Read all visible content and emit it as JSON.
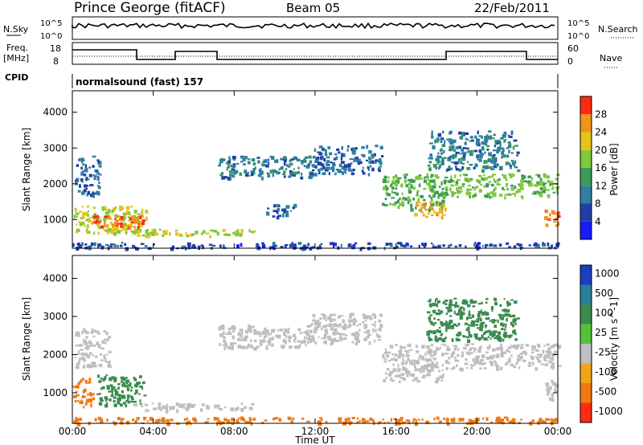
{
  "header": {
    "site": "Prince George (fitACF)",
    "beam": "Beam 05",
    "date": "22/Feb/2011"
  },
  "strips": {
    "nsky_label": "N.Sky",
    "nsky_ticks": [
      "10^5",
      "10^0"
    ],
    "nsearch_label": "N.Search",
    "nsearch_ticks": [
      "10^5",
      "10^0"
    ],
    "freq_label": "Freq.",
    "freq_unit": "[MHz]",
    "freq_ticks": [
      "18",
      "8"
    ],
    "nave_label": "Nave",
    "nave_ticks": [
      "60",
      "0"
    ],
    "cpid_label": "CPID",
    "cpid_value": "normalsound (fast) 157"
  },
  "colors": {
    "power_scale": [
      "#1a1aff",
      "#1f3fa8",
      "#2e7fa0",
      "#3c9a58",
      "#7fc93a",
      "#e6c31a",
      "#f0941a",
      "#ff2b10"
    ],
    "velocity_scale": [
      "#1a3fbf",
      "#2a7f9a",
      "#3c8a50",
      "#55c13a",
      "#bfbfbf",
      "#f0a51a",
      "#f07a10",
      "#ff2b10"
    ]
  },
  "chart_data": [
    {
      "type": "heatmap",
      "ylabel": "Slant Range [km]",
      "yticks": [
        "1000",
        "2000",
        "3000",
        "4000"
      ],
      "ylim": [
        200,
        4600
      ],
      "xlim": [
        0,
        24
      ],
      "colorbar": {
        "label": "Power [dB]",
        "ticks": [
          "4",
          "8",
          "12",
          "16",
          "20",
          "24",
          "28"
        ],
        "range": [
          0,
          32
        ]
      },
      "regions": [
        {
          "t0": 0.0,
          "t1": 3.7,
          "r0": 650,
          "r1": 1400,
          "value": 20
        },
        {
          "t0": 1.0,
          "t1": 3.6,
          "r0": 800,
          "r1": 1150,
          "value": 29
        },
        {
          "t0": 0.1,
          "t1": 1.3,
          "r0": 1700,
          "r1": 2800,
          "value": 9
        },
        {
          "t0": 3.0,
          "t1": 9.0,
          "r0": 550,
          "r1": 750,
          "value": 19
        },
        {
          "t0": 0.0,
          "t1": 24.0,
          "r0": 220,
          "r1": 380,
          "value": 6
        },
        {
          "t0": 7.2,
          "t1": 11.8,
          "r0": 2200,
          "r1": 2800,
          "value": 10
        },
        {
          "t0": 11.8,
          "t1": 15.3,
          "r0": 2300,
          "r1": 3100,
          "value": 9
        },
        {
          "t0": 15.3,
          "t1": 18.4,
          "r0": 1300,
          "r1": 2300,
          "value": 16
        },
        {
          "t0": 16.8,
          "t1": 18.5,
          "r0": 1100,
          "r1": 1550,
          "value": 25
        },
        {
          "t0": 18.4,
          "t1": 24.0,
          "r0": 1650,
          "r1": 2300,
          "value": 17
        },
        {
          "t0": 17.5,
          "t1": 22.0,
          "r0": 2400,
          "r1": 3500,
          "value": 10
        },
        {
          "t0": 9.5,
          "t1": 11.0,
          "r0": 1100,
          "r1": 1450,
          "value": 8
        },
        {
          "t0": 23.3,
          "t1": 24.0,
          "r0": 850,
          "r1": 1350,
          "value": 27
        }
      ]
    },
    {
      "type": "heatmap",
      "ylabel": "Slant Range [km]",
      "yticks": [
        "1000",
        "2000",
        "3000",
        "4000"
      ],
      "ylim": [
        200,
        4600
      ],
      "xlim": [
        0,
        24
      ],
      "xlabel": "Time UT",
      "xticks": [
        "00:00",
        "04:00",
        "08:00",
        "12:00",
        "16:00",
        "20:00",
        "00:00"
      ],
      "colorbar": {
        "label": "Velocity [m s^-1]",
        "ticks": [
          "1000",
          "500",
          "100",
          "25",
          "-25",
          "-100",
          "-500",
          "-1000"
        ]
      },
      "regions": [
        {
          "t0": 0.0,
          "t1": 1.0,
          "r0": 650,
          "r1": 1400,
          "value": -300
        },
        {
          "t0": 1.2,
          "t1": 3.6,
          "r0": 700,
          "r1": 1500,
          "value": 150
        },
        {
          "t0": 0.1,
          "t1": 1.8,
          "r0": 1700,
          "r1": 2700,
          "value": 0
        },
        {
          "t0": 3.0,
          "t1": 9.0,
          "r0": 550,
          "r1": 750,
          "value": 0
        },
        {
          "t0": 0.0,
          "t1": 24.0,
          "r0": 220,
          "r1": 380,
          "value": -200
        },
        {
          "t0": 7.2,
          "t1": 11.8,
          "r0": 2200,
          "r1": 2800,
          "value": 0
        },
        {
          "t0": 11.8,
          "t1": 15.3,
          "r0": 2300,
          "r1": 3100,
          "value": 0
        },
        {
          "t0": 15.3,
          "t1": 18.4,
          "r0": 1300,
          "r1": 2300,
          "value": 0
        },
        {
          "t0": 18.4,
          "t1": 24.0,
          "r0": 1650,
          "r1": 2300,
          "value": 0
        },
        {
          "t0": 17.5,
          "t1": 22.0,
          "r0": 2400,
          "r1": 3500,
          "value": 300
        },
        {
          "t0": 23.3,
          "t1": 24.0,
          "r0": 850,
          "r1": 1350,
          "value": 0
        }
      ]
    }
  ]
}
